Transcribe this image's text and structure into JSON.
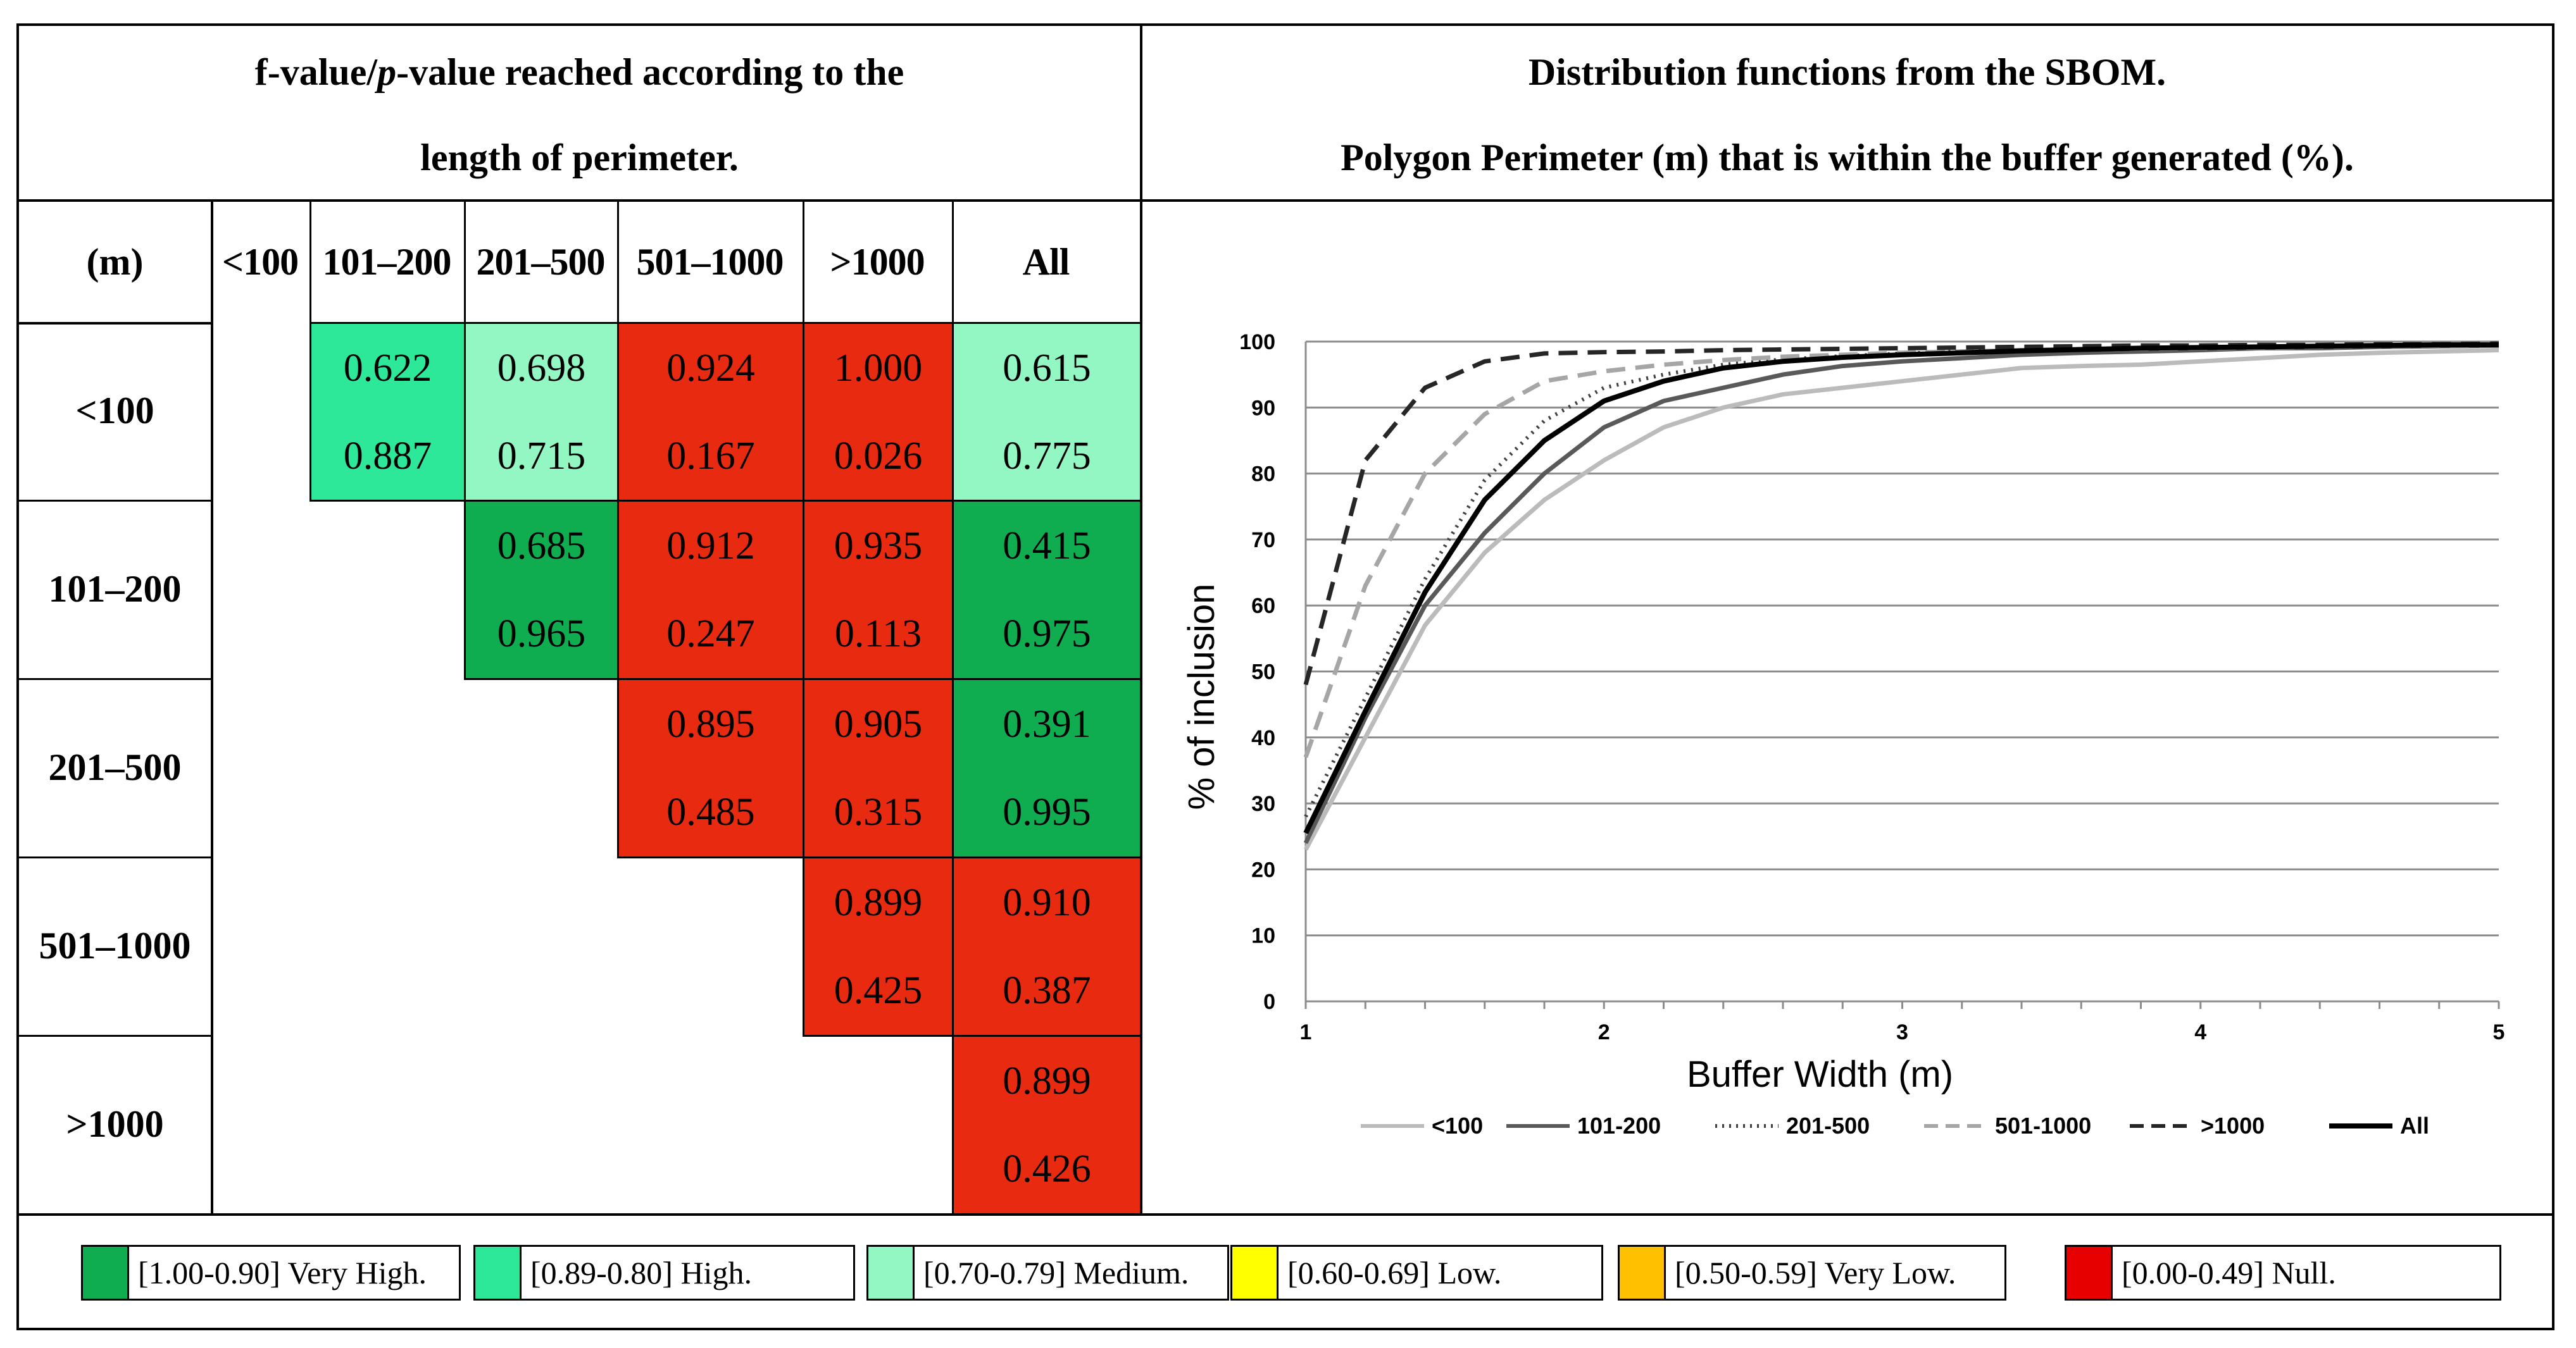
{
  "left_panel": {
    "title_line1_pre": "f-value/",
    "title_line1_italic": "p",
    "title_line1_post": "-value reached according to the",
    "title_line2": "length of perimeter.",
    "corner_label": "(m)",
    "col_headers": [
      "<100",
      "101–200",
      "201–500",
      "501–1000",
      ">1000",
      "All"
    ],
    "row_headers": [
      "<100",
      "101–200",
      "201–500",
      "501–1000",
      ">1000"
    ],
    "cells": [
      {
        "row": 0,
        "col": 1,
        "f": "0.622",
        "p": "0.887",
        "color": "#2ee89a"
      },
      {
        "row": 0,
        "col": 2,
        "f": "0.698",
        "p": "0.715",
        "color": "#93f7c3"
      },
      {
        "row": 0,
        "col": 3,
        "f": "0.924",
        "p": "0.167",
        "color": "#e82a10"
      },
      {
        "row": 0,
        "col": 4,
        "f": "1.000",
        "p": "0.026",
        "color": "#e82a10"
      },
      {
        "row": 0,
        "col": 5,
        "f": "0.615",
        "p": "0.775",
        "color": "#93f7c3"
      },
      {
        "row": 1,
        "col": 2,
        "f": "0.685",
        "p": "0.965",
        "color": "#10ac50"
      },
      {
        "row": 1,
        "col": 3,
        "f": "0.912",
        "p": "0.247",
        "color": "#e82a10"
      },
      {
        "row": 1,
        "col": 4,
        "f": "0.935",
        "p": "0.113",
        "color": "#e82a10"
      },
      {
        "row": 1,
        "col": 5,
        "f": "0.415",
        "p": "0.975",
        "color": "#10ac50"
      },
      {
        "row": 2,
        "col": 3,
        "f": "0.895",
        "p": "0.485",
        "color": "#e82a10"
      },
      {
        "row": 2,
        "col": 4,
        "f": "0.905",
        "p": "0.315",
        "color": "#e82a10"
      },
      {
        "row": 2,
        "col": 5,
        "f": "0.391",
        "p": "0.995",
        "color": "#10ac50"
      },
      {
        "row": 3,
        "col": 4,
        "f": "0.899",
        "p": "0.425",
        "color": "#e82a10"
      },
      {
        "row": 3,
        "col": 5,
        "f": "0.910",
        "p": "0.387",
        "color": "#e82a10"
      },
      {
        "row": 4,
        "col": 5,
        "f": "0.899",
        "p": "0.426",
        "color": "#e82a10"
      }
    ]
  },
  "right_panel": {
    "title_line1": "Distribution functions from the SBOM.",
    "title_line2": "Polygon Perimeter (m) that is within the buffer generated (%)."
  },
  "legend": [
    {
      "label": "[1.00-0.90] Very High.",
      "color": "#10ac50"
    },
    {
      "label": "[0.89-0.80] High.",
      "color": "#2ee89a"
    },
    {
      "label": "[0.70-0.79] Medium.",
      "color": "#93f7c3"
    },
    {
      "label": "[0.60-0.69] Low.",
      "color": "#ffff00"
    },
    {
      "label": "[0.50-0.59] Very Low.",
      "color": "#ffc000"
    },
    {
      "label": "[0.00-0.49] Null.",
      "color": "#e60000"
    }
  ],
  "chart_data": {
    "type": "line",
    "title": "",
    "xlabel": "Buffer Width (m)",
    "ylabel": "% of inclusion",
    "xlim": [
      1,
      5
    ],
    "ylim": [
      0,
      100
    ],
    "xticks": [
      1,
      2,
      3,
      4,
      5
    ],
    "yticks": [
      0,
      10,
      20,
      30,
      40,
      50,
      60,
      70,
      80,
      90,
      100
    ],
    "grid": "horizontal",
    "legend_position": "bottom",
    "x": [
      1.0,
      1.2,
      1.4,
      1.6,
      1.8,
      2.0,
      2.2,
      2.4,
      2.6,
      2.8,
      3.0,
      3.2,
      3.4,
      3.6,
      3.8,
      4.0,
      4.2,
      4.4,
      4.6,
      4.8,
      5.0
    ],
    "series": [
      {
        "name": "<100",
        "color": "#bbbbbb",
        "dash": "solid",
        "values": [
          23,
          40,
          57,
          68,
          76,
          82,
          87,
          90,
          92,
          93,
          94,
          95,
          96,
          96.3,
          96.5,
          97,
          97.5,
          98,
          98.3,
          98.5,
          98.7
        ]
      },
      {
        "name": "101-200",
        "color": "#595959",
        "dash": "solid",
        "values": [
          24,
          43,
          60,
          71,
          80,
          87,
          91,
          93,
          95,
          96.3,
          97,
          97.5,
          98,
          98.3,
          98.5,
          98.7,
          99,
          99,
          99.2,
          99.3,
          99.4
        ]
      },
      {
        "name": "201-500",
        "color": "#404040",
        "dash": "dotted",
        "values": [
          28,
          46,
          64,
          79,
          88,
          93,
          95,
          96.5,
          97.3,
          97.8,
          98.2,
          98.5,
          98.7,
          98.9,
          99,
          99.1,
          99.2,
          99.3,
          99.4,
          99.5,
          99.5
        ]
      },
      {
        "name": "501-1000",
        "color": "#a6a6a6",
        "dash": "dashed",
        "values": [
          37,
          63,
          80,
          89,
          94,
          95.5,
          96.5,
          97.2,
          97.7,
          98,
          98.3,
          98.5,
          98.7,
          98.8,
          98.9,
          99,
          99.1,
          99.2,
          99.3,
          99.4,
          99.4
        ]
      },
      {
        "name": ">1000",
        "color": "#262626",
        "dash": "dashed",
        "values": [
          48,
          82,
          93,
          97,
          98.2,
          98.4,
          98.5,
          98.7,
          98.8,
          98.9,
          99,
          99.1,
          99.2,
          99.3,
          99.4,
          99.4,
          99.5,
          99.5,
          99.6,
          99.6,
          99.7
        ]
      },
      {
        "name": "All",
        "color": "#000000",
        "dash": "solid",
        "values": [
          25.5,
          44,
          62,
          76,
          85,
          91,
          94,
          96,
          97,
          97.6,
          98,
          98.3,
          98.6,
          98.8,
          99,
          99.1,
          99.2,
          99.3,
          99.4,
          99.5,
          99.5
        ]
      }
    ]
  }
}
